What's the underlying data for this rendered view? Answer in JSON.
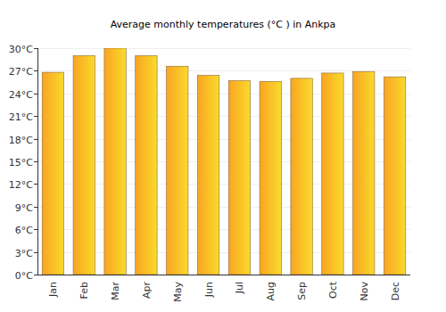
{
  "chart_data": {
    "type": "bar",
    "title": "Average monthly temperatures (°C ) in Ankpa",
    "categories": [
      "Jan",
      "Feb",
      "Mar",
      "Apr",
      "May",
      "Jun",
      "Jul",
      "Aug",
      "Sep",
      "Oct",
      "Nov",
      "Dec"
    ],
    "values": [
      26.8,
      29.0,
      30.0,
      29.0,
      27.6,
      26.4,
      25.7,
      25.6,
      26.0,
      26.7,
      26.9,
      26.2
    ],
    "color": "#f9a423",
    "ylim": [
      0,
      30
    ],
    "yticks": [
      {
        "value": 0,
        "label": "0°C"
      },
      {
        "value": 3,
        "label": "3°C"
      },
      {
        "value": 6,
        "label": "6°C"
      },
      {
        "value": 9,
        "label": "9°C"
      },
      {
        "value": 12,
        "label": "12°C"
      },
      {
        "value": 15,
        "label": "15°C"
      },
      {
        "value": 18,
        "label": "18°C"
      },
      {
        "value": 21,
        "label": "21°C"
      },
      {
        "value": 24,
        "label": "24°C"
      },
      {
        "value": 27,
        "label": "27°C"
      },
      {
        "value": 30,
        "label": "30°C"
      }
    ],
    "grid": true
  }
}
